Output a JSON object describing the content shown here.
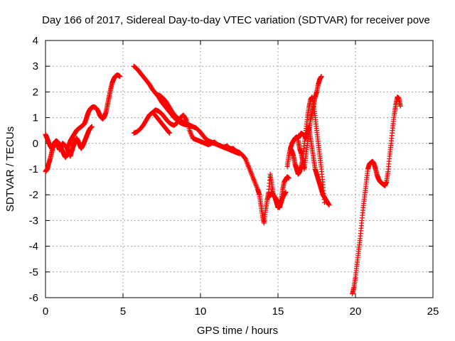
{
  "chart_data": {
    "type": "scatter",
    "title": "Day 166 of 2017, Sidereal Day-to-day VTEC variation (SDTVAR) for receiver pove",
    "xlabel": "GPS time / hours",
    "ylabel": "SDTVAR / TECUs",
    "xlim": [
      0,
      25
    ],
    "ylim": [
      -6,
      4
    ],
    "xticks": [
      "0",
      "5",
      "10",
      "15",
      "20",
      "25"
    ],
    "yticks": [
      "-6",
      "-5",
      "-4",
      "-3",
      "-2",
      "-1",
      "0",
      "1",
      "2",
      "3",
      "4"
    ],
    "grid": true,
    "legend": "none",
    "marker": "+",
    "color": "#ff0000",
    "series": [
      {
        "x": [
          0.0,
          0.05,
          0.12,
          0.2,
          0.3,
          0.4,
          0.5,
          0.6,
          0.7,
          0.8,
          0.9,
          1.0,
          1.1,
          1.2,
          1.3,
          1.4,
          1.5,
          1.6,
          1.7,
          1.8,
          1.9,
          2.0,
          2.1,
          2.2,
          2.3,
          2.4,
          2.5,
          2.6,
          2.7,
          2.8,
          2.9,
          3.0,
          3.1,
          3.2,
          3.3,
          3.4,
          3.5,
          3.6,
          3.7,
          3.8,
          3.9,
          4.0,
          4.1,
          4.2,
          4.3,
          4.4,
          4.5,
          4.6,
          4.7,
          4.8
        ],
        "y": [
          -1.1,
          -1.05,
          -1.0,
          -0.8,
          -0.6,
          -0.35,
          -0.1,
          0.05,
          0.1,
          0.05,
          -0.05,
          -0.15,
          -0.3,
          -0.45,
          -0.55,
          -0.4,
          -0.1,
          0.1,
          0.2,
          0.3,
          0.4,
          0.5,
          0.55,
          0.6,
          0.65,
          0.7,
          0.75,
          0.9,
          1.1,
          1.25,
          1.35,
          1.4,
          1.42,
          1.4,
          1.35,
          1.25,
          1.1,
          1.0,
          0.95,
          1.05,
          1.2,
          1.5,
          1.8,
          2.1,
          2.35,
          2.5,
          2.6,
          2.65,
          2.65,
          2.6
        ]
      },
      {
        "x": [
          0.0,
          0.1,
          0.2,
          0.3,
          0.4,
          0.5,
          0.6,
          0.7,
          0.8,
          0.9,
          1.0,
          1.1,
          1.2,
          1.3,
          1.4,
          1.5,
          1.6,
          1.7,
          1.8,
          1.9,
          2.0,
          2.1,
          2.2,
          2.3,
          2.4,
          2.5,
          2.6,
          2.7,
          2.8,
          2.9,
          3.0
        ],
        "y": [
          0.35,
          0.2,
          0.05,
          -0.1,
          -0.2,
          -0.15,
          -0.05,
          0.0,
          -0.1,
          -0.25,
          -0.1,
          0.0,
          -0.05,
          -0.1,
          -0.2,
          -0.35,
          -0.5,
          -0.3,
          -0.1,
          0.05,
          0.2,
          0.1,
          -0.05,
          -0.2,
          -0.1,
          0.05,
          0.2,
          0.35,
          0.5,
          0.6,
          0.65
        ]
      },
      {
        "x": [
          5.7,
          5.9,
          6.1,
          6.3,
          6.5,
          6.7,
          6.9,
          7.1,
          7.3,
          7.5,
          7.7,
          7.9,
          8.1,
          8.3,
          8.5,
          8.7,
          8.9,
          9.1,
          9.3,
          9.5,
          9.7,
          9.9,
          10.1,
          10.3,
          10.5,
          10.7,
          10.9,
          11.1,
          11.3,
          11.5,
          11.7,
          11.9,
          12.1,
          12.3,
          12.5,
          12.7,
          12.9,
          13.1,
          13.3,
          13.5,
          13.7
        ],
        "y": [
          3.0,
          2.9,
          2.75,
          2.6,
          2.45,
          2.3,
          2.1,
          1.95,
          1.8,
          1.6,
          1.45,
          1.3,
          1.15,
          1.0,
          0.9,
          0.8,
          0.75,
          0.72,
          0.7,
          0.65,
          0.6,
          0.5,
          0.35,
          0.2,
          0.1,
          0.05,
          0.0,
          -0.05,
          -0.1,
          -0.15,
          -0.1,
          -0.2,
          -0.2,
          -0.3,
          -0.35,
          -0.45,
          -0.6,
          -0.9,
          -1.2,
          -1.5,
          -1.8
        ]
      },
      {
        "x": [
          5.7,
          5.9,
          6.1,
          6.3,
          6.5,
          6.7,
          6.9,
          7.1,
          7.3,
          7.5,
          7.7,
          7.9,
          8.1,
          8.3,
          8.5,
          8.7,
          8.9,
          9.1,
          9.3,
          9.5,
          9.7,
          9.9,
          10.1,
          10.3,
          10.5,
          10.7,
          10.9,
          11.1,
          11.3,
          11.5,
          11.7,
          11.9,
          12.1,
          12.3,
          12.5
        ],
        "y": [
          0.4,
          0.45,
          0.55,
          0.7,
          0.9,
          1.1,
          1.2,
          1.3,
          1.25,
          1.15,
          1.0,
          0.85,
          0.75,
          0.7,
          0.8,
          1.0,
          1.1,
          0.9,
          0.5,
          0.2,
          0.15,
          0.1,
          0.05,
          0.0,
          -0.05,
          0.0,
          0.05,
          -0.05,
          -0.1,
          -0.15,
          -0.2,
          -0.25,
          -0.3,
          -0.35,
          -0.4
        ]
      },
      {
        "x": [
          7.2,
          7.4,
          7.6,
          7.8,
          8.0,
          8.2,
          8.4,
          8.6,
          8.8,
          9.0,
          9.2,
          9.4
        ],
        "y": [
          1.9,
          1.85,
          1.75,
          1.6,
          1.4,
          1.2,
          1.05,
          0.95,
          0.85,
          0.78,
          0.72,
          0.68
        ]
      },
      {
        "x": [
          7.0,
          7.2,
          7.4,
          7.6,
          7.8,
          8.0
        ],
        "y": [
          1.15,
          1.0,
          0.85,
          0.7,
          0.55,
          0.4
        ]
      },
      {
        "x": [
          13.7,
          13.8,
          13.9,
          14.0,
          14.1,
          14.2,
          14.3,
          14.4,
          14.5,
          14.6,
          14.7,
          14.8,
          14.9,
          15.0,
          15.1,
          15.2,
          15.3,
          15.4,
          15.5,
          15.6,
          15.7
        ],
        "y": [
          -1.8,
          -2.0,
          -2.4,
          -2.8,
          -3.1,
          -2.6,
          -2.2,
          -1.9,
          -1.2,
          -1.6,
          -2.0,
          -2.1,
          -2.3,
          -2.5,
          -2.4,
          -2.2,
          -1.8,
          -1.5,
          -1.4,
          -1.3,
          -1.35
        ]
      },
      {
        "x": [
          14.4,
          14.5,
          14.6,
          14.7,
          14.8,
          14.9,
          15.0,
          15.1,
          15.2,
          15.3,
          15.4,
          15.5
        ],
        "y": [
          -2.1,
          -2.0,
          -1.9,
          -2.0,
          -2.1,
          -2.2,
          -2.4,
          -2.5,
          -2.3,
          -2.1,
          -2.0,
          -1.9
        ]
      },
      {
        "x": [
          15.6,
          15.7,
          15.8,
          15.9,
          16.0,
          16.1,
          16.2,
          16.3,
          16.4,
          16.5,
          16.6,
          16.7,
          16.8,
          16.9,
          17.0,
          17.1,
          17.2,
          17.3,
          17.4,
          17.5,
          17.6,
          17.7,
          17.8,
          17.9,
          18.0,
          18.1,
          18.2,
          18.3
        ],
        "y": [
          -0.9,
          -0.5,
          -0.2,
          0.0,
          0.1,
          0.2,
          0.25,
          0.2,
          0.3,
          0.4,
          0.35,
          0.3,
          0.2,
          0.4,
          0.6,
          0.2,
          -0.2,
          -0.6,
          -1.0,
          -1.2,
          -1.4,
          -1.6,
          -1.8,
          -2.0,
          -2.1,
          -2.2,
          -2.3,
          -2.4
        ]
      },
      {
        "x": [
          15.8,
          15.9,
          16.0,
          16.1,
          16.2,
          16.3,
          16.4,
          16.5,
          16.6,
          16.7,
          16.8,
          16.9,
          17.0,
          17.1,
          17.2,
          17.3,
          17.4,
          17.5,
          17.6,
          17.7,
          17.8,
          17.9,
          18.0
        ],
        "y": [
          -0.2,
          -0.3,
          -0.5,
          -0.8,
          -1.0,
          -1.2,
          -1.1,
          -0.9,
          -0.6,
          0.0,
          0.5,
          1.0,
          1.4,
          1.7,
          1.8,
          1.5,
          1.0,
          0.5,
          0.0,
          -0.5,
          -1.0,
          -1.6,
          -2.3
        ]
      },
      {
        "x": [
          16.3,
          16.4,
          16.5,
          16.6,
          16.7,
          16.8,
          16.9,
          17.0,
          17.1,
          17.2,
          17.3,
          17.4,
          17.5,
          17.6,
          17.7,
          17.8
        ],
        "y": [
          0.1,
          -0.2,
          -0.4,
          -0.7,
          -1.0,
          -0.5,
          0.0,
          0.5,
          0.9,
          1.2,
          1.5,
          1.8,
          2.0,
          2.3,
          2.5,
          2.6
        ]
      },
      {
        "x": [
          19.8,
          19.9,
          20.0,
          20.1,
          20.2,
          20.3,
          20.4,
          20.5,
          20.6,
          20.7,
          20.8,
          20.9,
          21.0,
          21.1,
          21.2,
          21.3,
          21.4,
          21.5,
          21.6,
          21.7,
          21.8,
          21.9,
          22.0,
          22.1,
          22.2,
          22.3,
          22.4,
          22.5,
          22.6,
          22.7,
          22.8,
          22.9
        ],
        "y": [
          -5.85,
          -5.6,
          -5.2,
          -4.7,
          -4.2,
          -3.7,
          -3.1,
          -2.5,
          -2.0,
          -1.5,
          -1.0,
          -0.8,
          -0.75,
          -0.7,
          -0.8,
          -1.0,
          -1.25,
          -1.4,
          -1.5,
          -1.55,
          -1.6,
          -1.65,
          -1.5,
          -1.1,
          -0.5,
          0.0,
          0.6,
          1.1,
          1.5,
          1.8,
          1.75,
          1.45
        ]
      }
    ]
  }
}
